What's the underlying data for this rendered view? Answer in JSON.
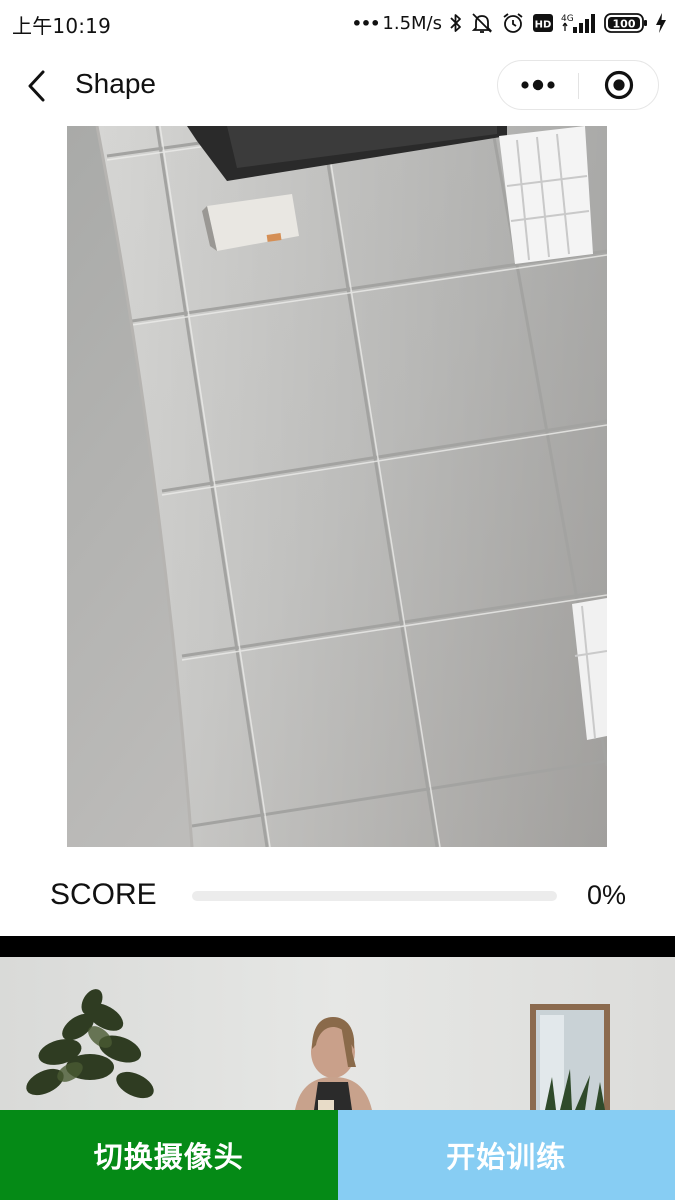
{
  "status_bar": {
    "time": "上午10:19",
    "network_speed": "1.5M/s",
    "hd_label": "HD",
    "network_type": "4G",
    "battery_level": "100",
    "icons": [
      "bluetooth-icon",
      "mute-icon",
      "alarm-icon",
      "hd-icon",
      "signal-icon",
      "battery-icon",
      "charging-icon"
    ]
  },
  "nav": {
    "title": "Shape",
    "icons": [
      "back-arrow-icon",
      "more-dots-icon",
      "close-target-icon"
    ]
  },
  "score": {
    "label": "SCORE",
    "value_text": "0%",
    "value": 0,
    "fill_color": "#07c160"
  },
  "buttons": {
    "switch_camera": "切换摄像头",
    "start_training": "开始训练"
  },
  "colors": {
    "switch_button": "#058a16",
    "start_button": "#87cdf3"
  }
}
